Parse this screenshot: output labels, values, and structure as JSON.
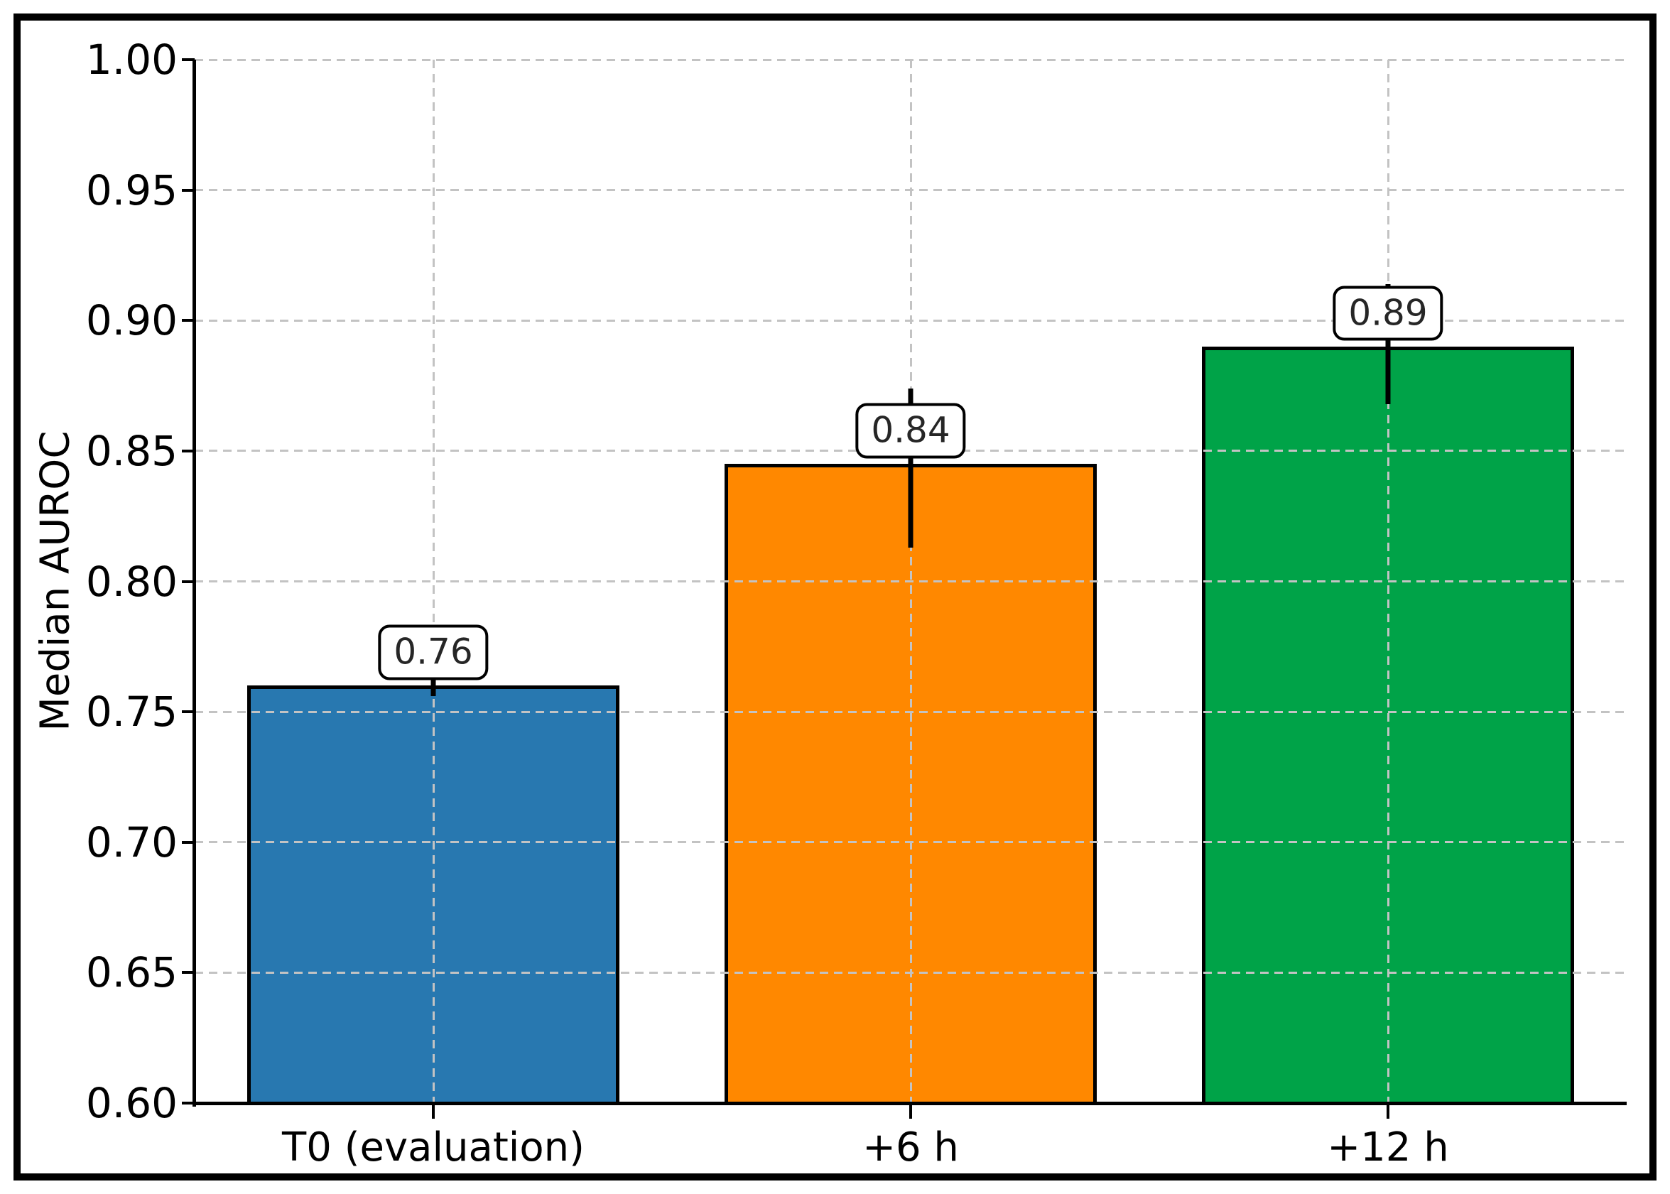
{
  "figure": {
    "background": "#ffffff",
    "border_color": "#000000"
  },
  "chart_data": {
    "type": "bar",
    "title": "",
    "xlabel": "",
    "ylabel": "Median AUROC",
    "categories": [
      "T0 (evaluation)",
      "+6 h",
      "+12 h"
    ],
    "values": [
      0.76,
      0.845,
      0.89
    ],
    "value_labels": [
      "0.76",
      "0.84",
      "0.89"
    ],
    "error_bars": [
      {
        "low": 0.756,
        "high": 0.765
      },
      {
        "low": 0.813,
        "high": 0.874
      },
      {
        "low": 0.868,
        "high": 0.914
      }
    ],
    "bar_colors": [
      "#2878b0",
      "#ff8800",
      "#00a348"
    ],
    "bar_edge_color": "#000000",
    "ylim": [
      0.6,
      1.0
    ],
    "ytick_labels": [
      "0.60",
      "0.65",
      "0.70",
      "0.75",
      "0.80",
      "0.85",
      "0.90",
      "0.95",
      "1.00"
    ],
    "grid": {
      "horizontal": true,
      "vertical": true,
      "style": "dashed",
      "color": "#c3c3c3",
      "grid_above_bars": true
    },
    "legend": null
  }
}
